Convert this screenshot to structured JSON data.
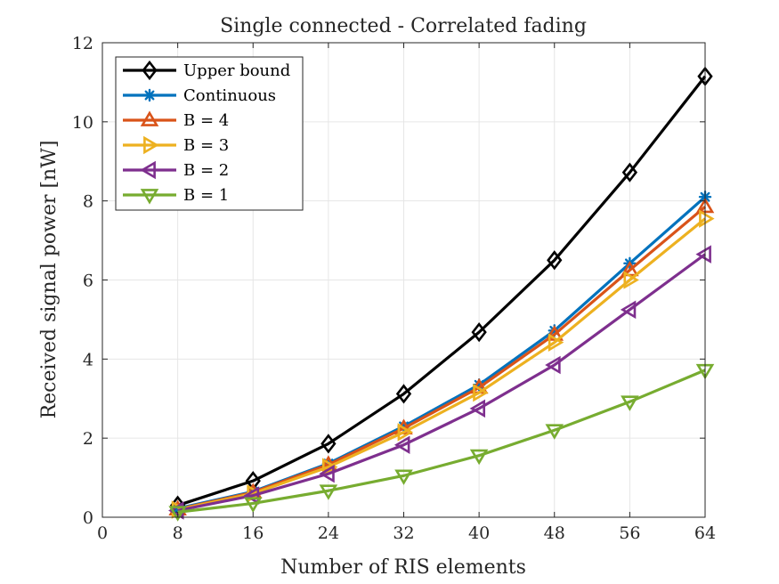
{
  "chart_data": {
    "type": "line",
    "title": "Single connected - Correlated fading",
    "xlabel": "Number of RIS elements",
    "ylabel": "Received signal power [nW]",
    "xlim": [
      0,
      64
    ],
    "ylim": [
      0,
      12
    ],
    "xticks": [
      0,
      8,
      16,
      24,
      32,
      40,
      48,
      56,
      64
    ],
    "yticks": [
      0,
      2,
      4,
      6,
      8,
      10,
      12
    ],
    "grid": true,
    "legend_position": "top-left",
    "x": [
      8,
      16,
      24,
      32,
      40,
      48,
      56,
      64
    ],
    "series": [
      {
        "name": "Upper bound",
        "marker": "diamond",
        "color": "#000000",
        "values": [
          0.3,
          0.92,
          1.86,
          3.12,
          4.68,
          6.5,
          8.72,
          11.15
        ]
      },
      {
        "name": "Continuous",
        "marker": "asterisk",
        "color": "#0072BD",
        "values": [
          0.22,
          0.65,
          1.36,
          2.3,
          3.35,
          4.72,
          6.42,
          8.1
        ]
      },
      {
        "name": "B = 4",
        "marker": "triangle-up",
        "color": "#D95319",
        "values": [
          0.2,
          0.63,
          1.33,
          2.25,
          3.28,
          4.62,
          6.25,
          7.85
        ]
      },
      {
        "name": "B = 3",
        "marker": "triangle-right",
        "color": "#EDB120",
        "values": [
          0.19,
          0.6,
          1.27,
          2.15,
          3.15,
          4.42,
          6.0,
          7.55
        ]
      },
      {
        "name": "B = 2",
        "marker": "triangle-left",
        "color": "#7E2F8E",
        "values": [
          0.17,
          0.55,
          1.1,
          1.83,
          2.75,
          3.85,
          5.25,
          6.65
        ]
      },
      {
        "name": "B = 1",
        "marker": "triangle-down",
        "color": "#77AC30",
        "values": [
          0.13,
          0.35,
          0.67,
          1.05,
          1.56,
          2.2,
          2.92,
          3.72
        ]
      }
    ]
  }
}
